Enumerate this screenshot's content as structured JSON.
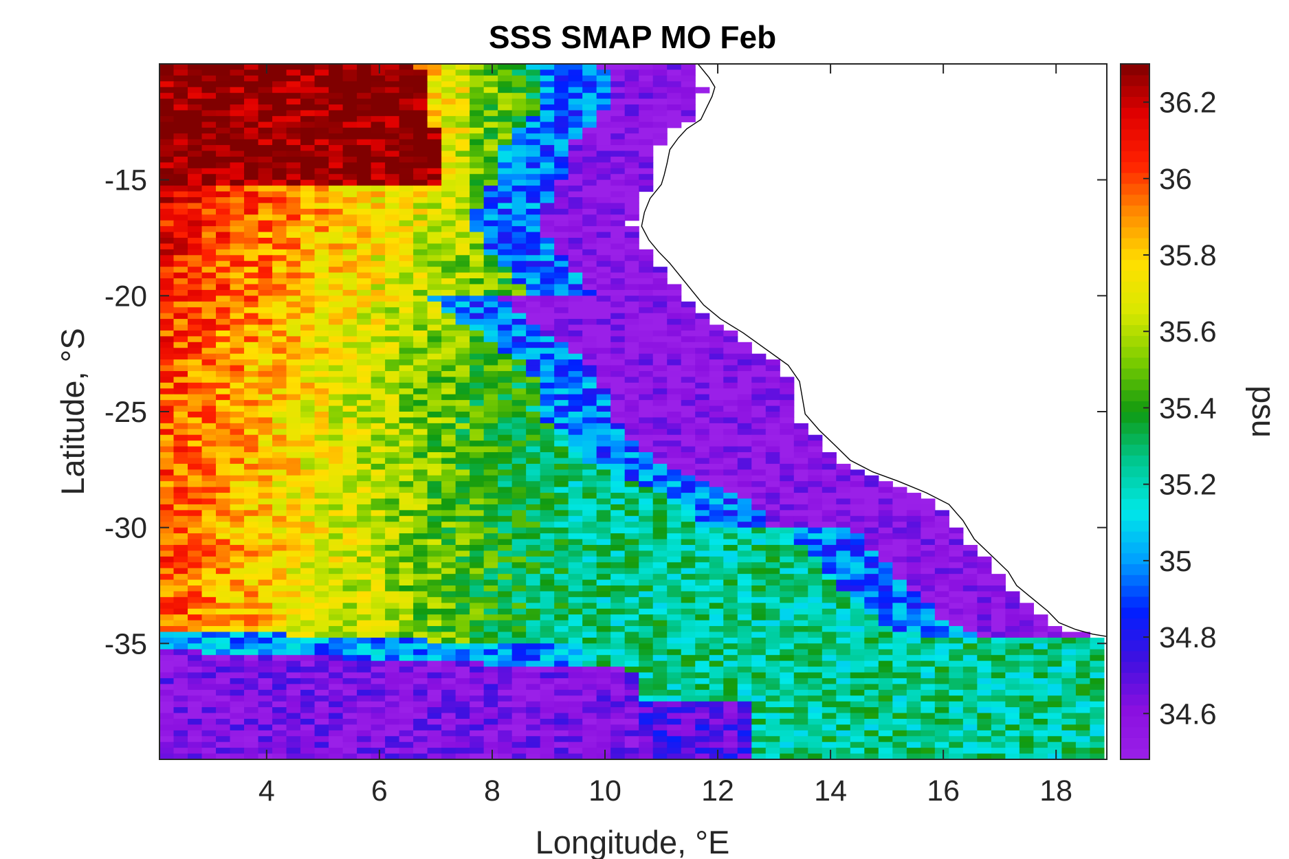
{
  "chart_data": {
    "type": "heatmap",
    "title": "SSS SMAP MO Feb",
    "xlabel": "Longitude, °E",
    "ylabel": "Latitude, °S",
    "colorbar_label": "psu",
    "xlim": [
      2.1,
      18.9
    ],
    "ylim": [
      -40,
      -10
    ],
    "xticks": [
      4,
      6,
      8,
      10,
      12,
      14,
      16,
      18
    ],
    "xtick_labels": [
      "4",
      "6",
      "8",
      "10",
      "12",
      "14",
      "16",
      "18"
    ],
    "yticks": [
      -15,
      -20,
      -25,
      -30,
      -35
    ],
    "ytick_labels": [
      "-15",
      "-20",
      "-25",
      "-30",
      "-35"
    ],
    "clim": [
      34.48,
      36.3
    ],
    "cticks": [
      36.2,
      36.0,
      35.8,
      35.6,
      35.4,
      35.2,
      35.0,
      34.8,
      34.6
    ],
    "ctick_labels": [
      "36.2",
      "36",
      "35.8",
      "35.6",
      "35.4",
      "35.2",
      "35",
      "34.8",
      "34.6"
    ],
    "colormap": [
      "#800000",
      "#e00000",
      "#ff2000",
      "#ff8c00",
      "#ffe000",
      "#d8e800",
      "#7acc00",
      "#109a10",
      "#00c890",
      "#00e8e8",
      "#00a0ff",
      "#0020ff",
      "#4010e0",
      "#8a10e0",
      "#9a20e8"
    ],
    "grid": false,
    "grid_step_deg": 0.25,
    "regions": [
      {
        "name": "high-salinity north-west",
        "approx_value": 36.3
      },
      {
        "name": "upwelling coastal band",
        "approx_value": 34.6
      },
      {
        "name": "southern low-salinity band",
        "approx_value": 34.6
      }
    ],
    "coastline": [
      [
        11.65,
        -10.0
      ],
      [
        11.85,
        -10.6
      ],
      [
        11.95,
        -11.0
      ],
      [
        11.9,
        -11.4
      ],
      [
        11.8,
        -11.9
      ],
      [
        11.7,
        -12.4
      ],
      [
        11.45,
        -12.8
      ],
      [
        11.3,
        -13.2
      ],
      [
        11.15,
        -13.7
      ],
      [
        11.1,
        -14.3
      ],
      [
        11.05,
        -14.8
      ],
      [
        11.0,
        -15.2
      ],
      [
        10.8,
        -15.8
      ],
      [
        10.7,
        -16.4
      ],
      [
        10.65,
        -17.0
      ],
      [
        10.78,
        -17.6
      ],
      [
        10.95,
        -18.1
      ],
      [
        11.15,
        -18.6
      ],
      [
        11.35,
        -19.2
      ],
      [
        11.55,
        -19.8
      ],
      [
        11.75,
        -20.4
      ],
      [
        12.05,
        -21.0
      ],
      [
        12.45,
        -21.6
      ],
      [
        12.85,
        -22.3
      ],
      [
        13.25,
        -23.0
      ],
      [
        13.45,
        -23.7
      ],
      [
        13.5,
        -24.4
      ],
      [
        13.55,
        -25.1
      ],
      [
        13.8,
        -25.8
      ],
      [
        14.1,
        -26.5
      ],
      [
        14.35,
        -27.1
      ],
      [
        14.75,
        -27.6
      ],
      [
        15.2,
        -28.0
      ],
      [
        15.7,
        -28.5
      ],
      [
        16.1,
        -29.0
      ],
      [
        16.35,
        -29.7
      ],
      [
        16.55,
        -30.5
      ],
      [
        16.85,
        -31.2
      ],
      [
        17.15,
        -31.9
      ],
      [
        17.3,
        -32.5
      ],
      [
        17.55,
        -33.0
      ],
      [
        17.85,
        -33.6
      ],
      [
        18.05,
        -34.1
      ],
      [
        18.35,
        -34.4
      ],
      [
        18.65,
        -34.6
      ],
      [
        18.9,
        -34.7
      ]
    ]
  }
}
